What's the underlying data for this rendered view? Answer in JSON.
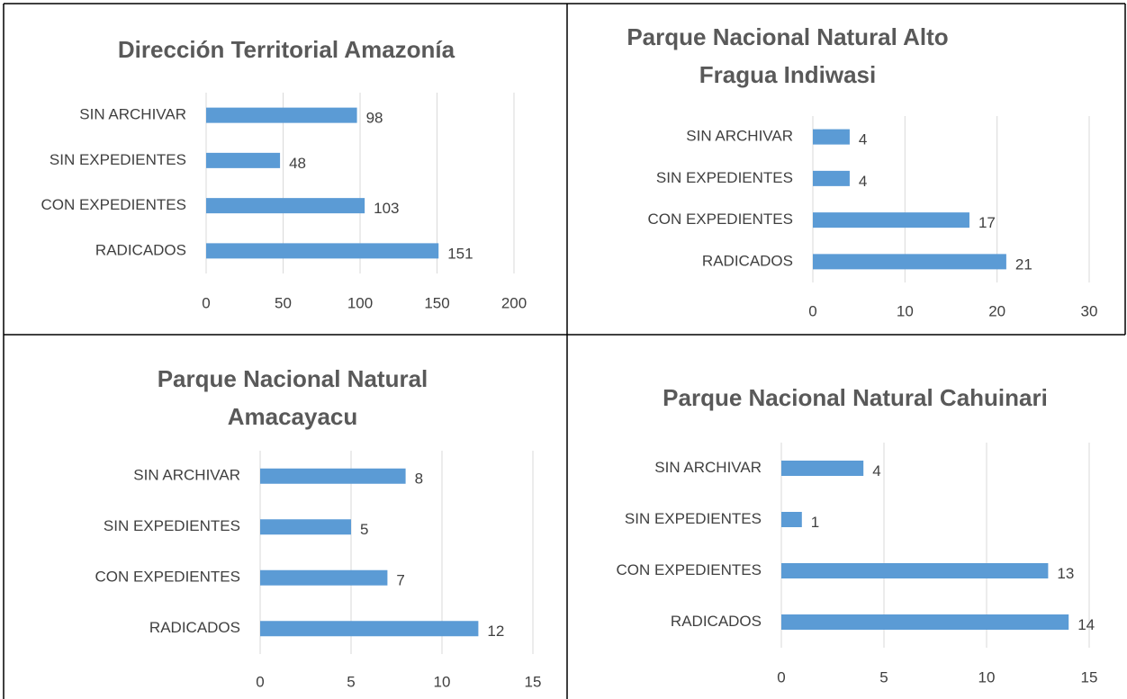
{
  "chart_data": [
    {
      "type": "bar",
      "title": "Dirección Territorial Amazonía",
      "categories": [
        "SIN ARCHIVAR",
        "SIN EXPEDIENTES",
        "CON EXPEDIENTES",
        "RADICADOS"
      ],
      "values": [
        98,
        48,
        103,
        151
      ],
      "color": "#5b9bd5",
      "xlim": [
        0,
        200
      ],
      "xticks": [
        0,
        50,
        100,
        150,
        200
      ],
      "grid": true
    },
    {
      "type": "bar",
      "title": "Parque Nacional Natural Alto Fragua Indiwasi",
      "categories": [
        "SIN ARCHIVAR",
        "SIN EXPEDIENTES",
        "CON EXPEDIENTES",
        "RADICADOS"
      ],
      "values": [
        4,
        4,
        17,
        21
      ],
      "color": "#5b9bd5",
      "xlim": [
        0,
        30
      ],
      "xticks": [
        0,
        10,
        20,
        30
      ],
      "grid": true
    },
    {
      "type": "bar",
      "title": "Parque Nacional Natural Amacayacu",
      "categories": [
        "SIN ARCHIVAR",
        "SIN EXPEDIENTES",
        "CON EXPEDIENTES",
        "RADICADOS"
      ],
      "values": [
        8,
        5,
        7,
        12
      ],
      "color": "#5b9bd5",
      "xlim": [
        0,
        15
      ],
      "xticks": [
        0,
        5,
        10,
        15
      ],
      "grid": true
    },
    {
      "type": "bar",
      "title": "Parque Nacional Natural Cahuinari",
      "categories": [
        "SIN ARCHIVAR",
        "SIN EXPEDIENTES",
        "CON EXPEDIENTES",
        "RADICADOS"
      ],
      "values": [
        4,
        1,
        13,
        14
      ],
      "color": "#5b9bd5",
      "xlim": [
        0,
        15
      ],
      "xticks": [
        0,
        5,
        10,
        15
      ],
      "grid": true
    }
  ]
}
